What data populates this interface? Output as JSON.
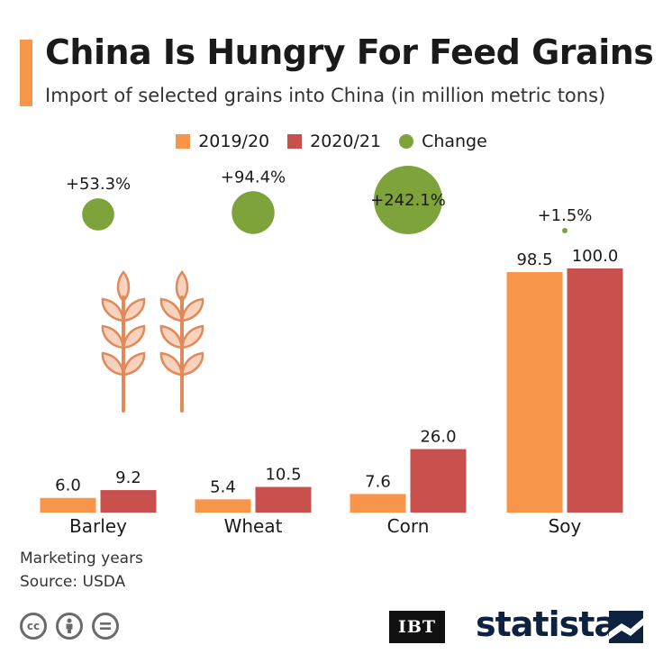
{
  "title": "China Is Hungry For Feed Grains",
  "subtitle": "Import of selected grains into China (in million metric tons)",
  "legend": [
    {
      "label": "2019/20",
      "color": "#f7964a",
      "shape": "square"
    },
    {
      "label": "2020/21",
      "color": "#c8514e",
      "shape": "square"
    },
    {
      "label": "Change",
      "color": "#7da33a",
      "shape": "circle"
    }
  ],
  "chart_data": {
    "type": "bar",
    "categories": [
      "Barley",
      "Wheat",
      "Corn",
      "Soy"
    ],
    "series": [
      {
        "name": "2019/20",
        "values": [
          6.0,
          5.4,
          7.6,
          98.5
        ],
        "labels": [
          "6.0",
          "5.4",
          "7.6",
          "98.5"
        ],
        "color": "#f7964a"
      },
      {
        "name": "2020/21",
        "values": [
          9.2,
          10.5,
          26.0,
          100.0
        ],
        "labels": [
          "9.2",
          "10.5",
          "26.0",
          "100.0"
        ],
        "color": "#c8514e"
      }
    ],
    "change": {
      "name": "Change",
      "values": [
        53.3,
        94.4,
        242.1,
        1.5
      ],
      "labels": [
        "+53.3%",
        "+94.4%",
        "+242.1%",
        "+1.5%"
      ],
      "color": "#7da33a"
    },
    "ylim": [
      0,
      100
    ]
  },
  "notes": {
    "line1": "Marketing years",
    "line2": "Source: USDA"
  },
  "branding": {
    "ibt": "IBT",
    "statista": "statista"
  },
  "icons": [
    "wheat-icon",
    "cc-icon",
    "attribution-icon",
    "no-derivatives-icon",
    "statista-logo-icon"
  ]
}
